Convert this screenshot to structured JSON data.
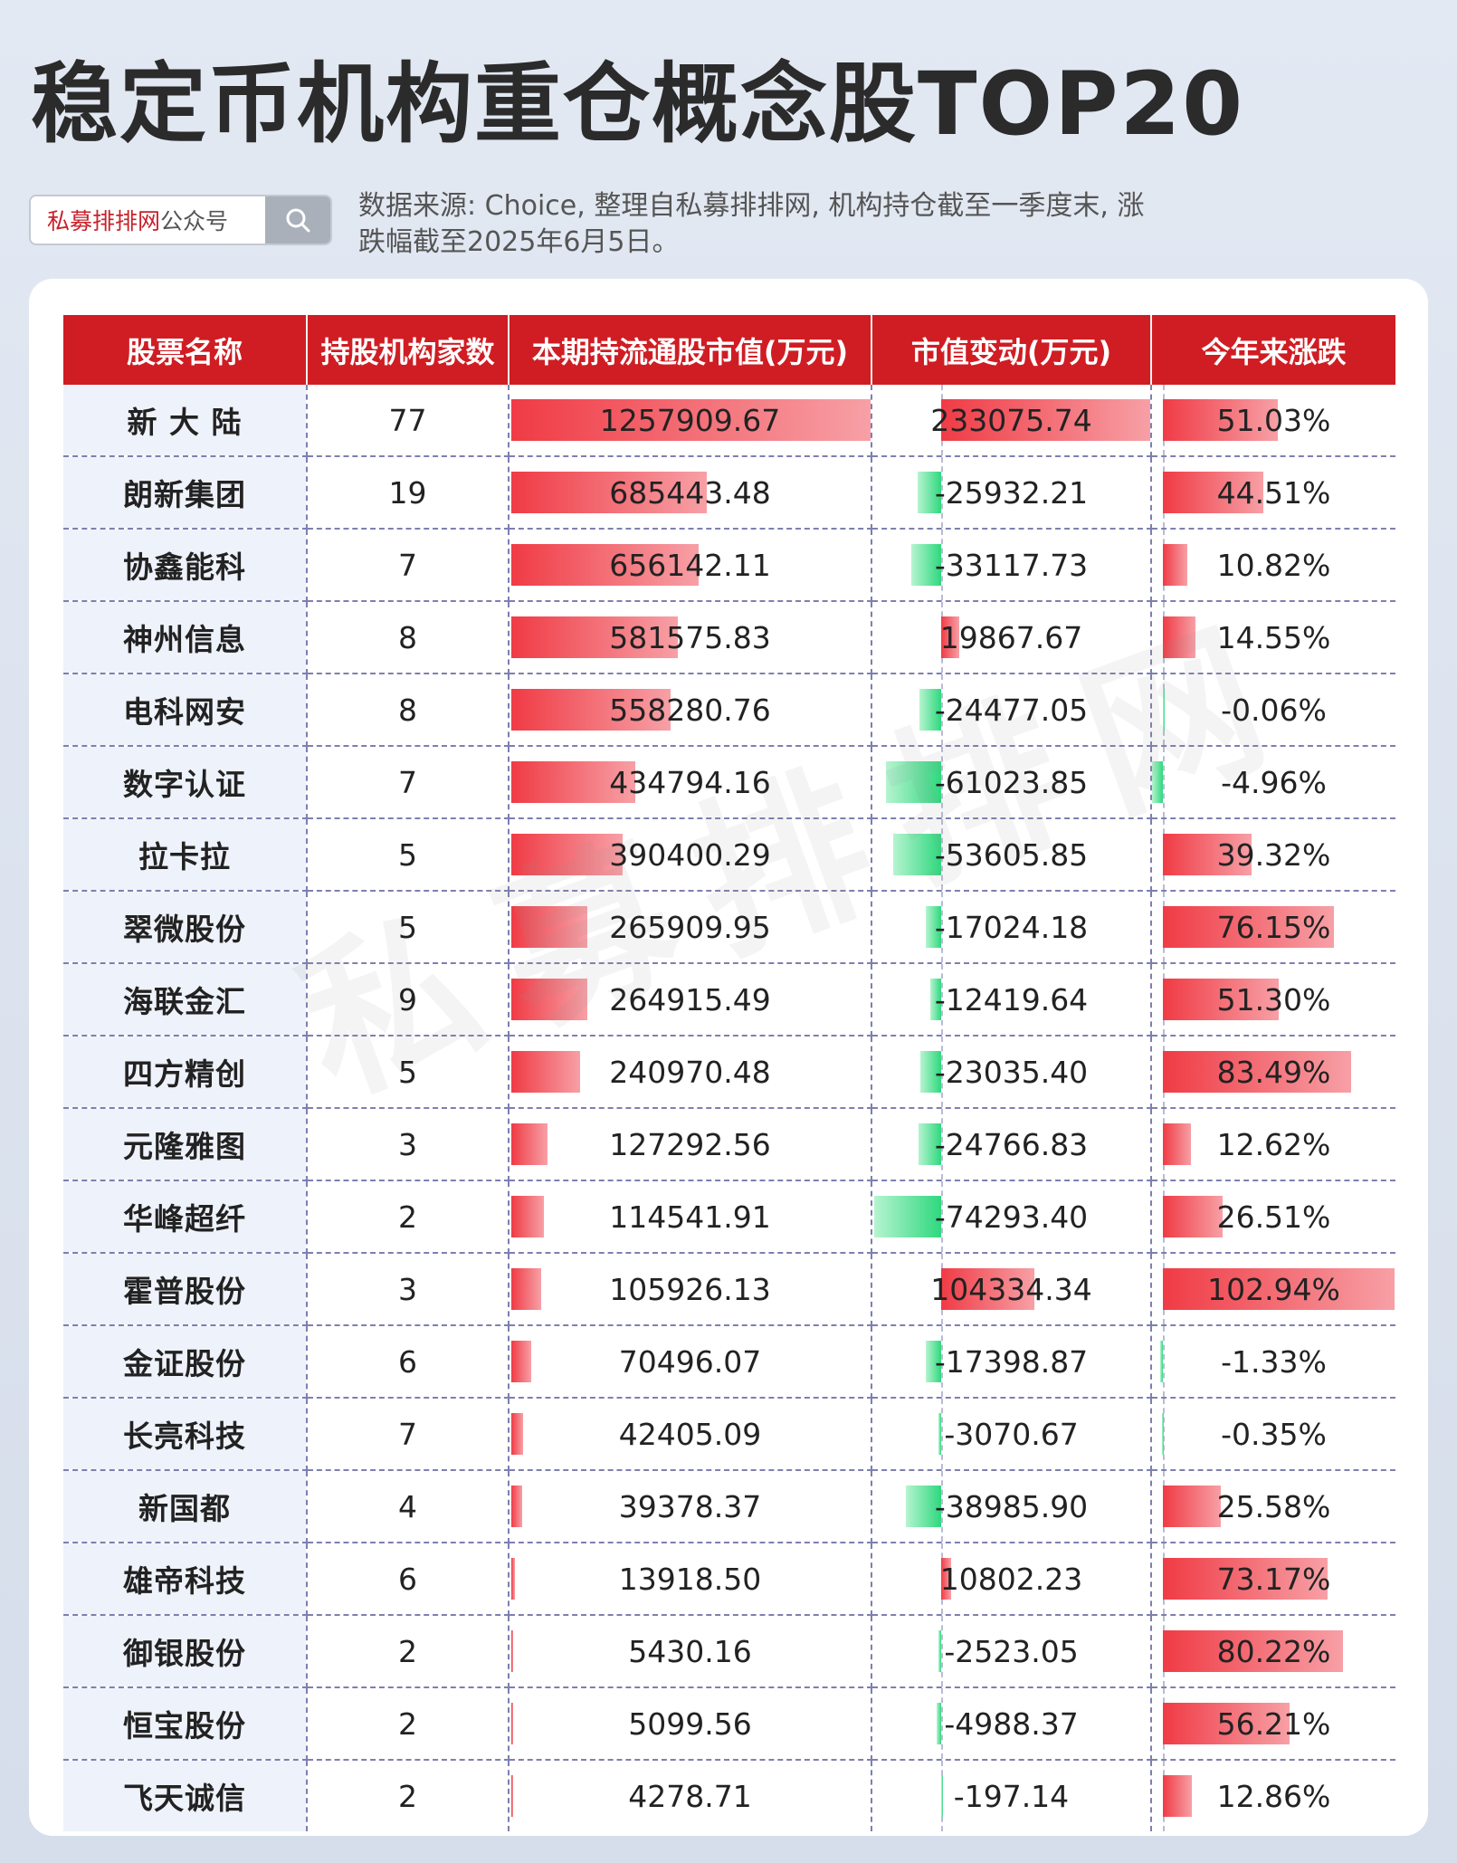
{
  "title": "稳定币机构重仓概念股TOP20",
  "search": {
    "brand": "私募排排网",
    "suffix": "公众号"
  },
  "source_line1": "数据来源: Choice, 整理自私募排排网, 机构持仓截至一季度末, 涨",
  "source_line2": "跌幅截至2025年6月5日。",
  "watermark": "私募排排网",
  "colors": {
    "header": "#cf1d23",
    "positive": "#f03b45",
    "negative": "#2fd87e"
  },
  "table": {
    "headers": [
      "股票名称",
      "持股机构家数",
      "本期持流通股市值(万元)",
      "市值变动(万元)",
      "今年来涨跌"
    ],
    "rows": [
      {
        "name": "新 大 陆",
        "count": "77",
        "value": "1257909.67",
        "change": "233075.74",
        "ytd": "51.03%"
      },
      {
        "name": "朗新集团",
        "count": "19",
        "value": "685443.48",
        "change": "-25932.21",
        "ytd": "44.51%"
      },
      {
        "name": "协鑫能科",
        "count": "7",
        "value": "656142.11",
        "change": "-33117.73",
        "ytd": "10.82%"
      },
      {
        "name": "神州信息",
        "count": "8",
        "value": "581575.83",
        "change": "19867.67",
        "ytd": "14.55%"
      },
      {
        "name": "电科网安",
        "count": "8",
        "value": "558280.76",
        "change": "-24477.05",
        "ytd": "-0.06%"
      },
      {
        "name": "数字认证",
        "count": "7",
        "value": "434794.16",
        "change": "-61023.85",
        "ytd": "-4.96%"
      },
      {
        "name": "拉卡拉",
        "count": "5",
        "value": "390400.29",
        "change": "-53605.85",
        "ytd": "39.32%"
      },
      {
        "name": "翠微股份",
        "count": "5",
        "value": "265909.95",
        "change": "-17024.18",
        "ytd": "76.15%"
      },
      {
        "name": "海联金汇",
        "count": "9",
        "value": "264915.49",
        "change": "-12419.64",
        "ytd": "51.30%"
      },
      {
        "name": "四方精创",
        "count": "5",
        "value": "240970.48",
        "change": "-23035.40",
        "ytd": "83.49%"
      },
      {
        "name": "元隆雅图",
        "count": "3",
        "value": "127292.56",
        "change": "-24766.83",
        "ytd": "12.62%"
      },
      {
        "name": "华峰超纤",
        "count": "2",
        "value": "114541.91",
        "change": "-74293.40",
        "ytd": "26.51%"
      },
      {
        "name": "霍普股份",
        "count": "3",
        "value": "105926.13",
        "change": "104334.34",
        "ytd": "102.94%"
      },
      {
        "name": "金证股份",
        "count": "6",
        "value": "70496.07",
        "change": "-17398.87",
        "ytd": "-1.33%"
      },
      {
        "name": "长亮科技",
        "count": "7",
        "value": "42405.09",
        "change": "-3070.67",
        "ytd": "-0.35%"
      },
      {
        "name": "新国都",
        "count": "4",
        "value": "39378.37",
        "change": "-38985.90",
        "ytd": "25.58%"
      },
      {
        "name": "雄帝科技",
        "count": "6",
        "value": "13918.50",
        "change": "10802.23",
        "ytd": "73.17%"
      },
      {
        "name": "御银股份",
        "count": "2",
        "value": "5430.16",
        "change": "-2523.05",
        "ytd": "80.22%"
      },
      {
        "name": "恒宝股份",
        "count": "2",
        "value": "5099.56",
        "change": "-4988.37",
        "ytd": "56.21%"
      },
      {
        "name": "飞天诚信",
        "count": "2",
        "value": "4278.71",
        "change": "-197.14",
        "ytd": "12.86%"
      }
    ]
  }
}
